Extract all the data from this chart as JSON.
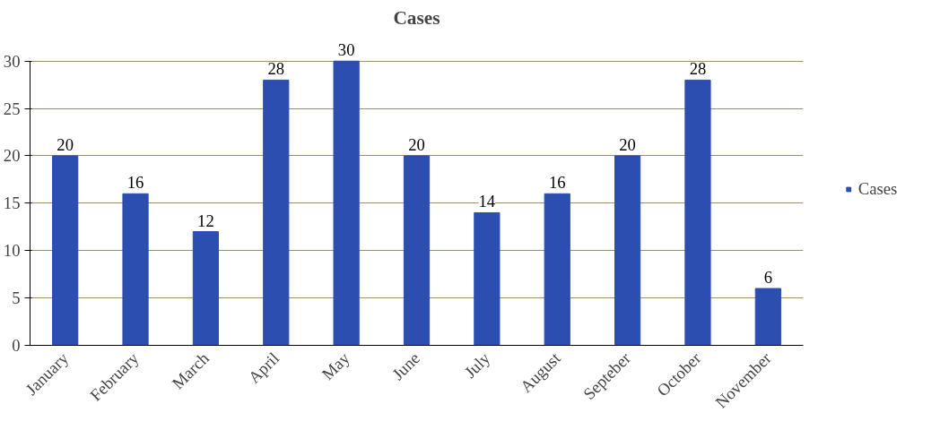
{
  "chart_data": {
    "type": "bar",
    "title": "Cases",
    "categories": [
      "January",
      "February",
      "March",
      "April",
      "May",
      "June",
      "July",
      "August",
      "Septeber",
      "October",
      "November"
    ],
    "series": [
      {
        "name": "Cases",
        "color": "#2b4eb0",
        "values": [
          20,
          16,
          12,
          28,
          30,
          20,
          14,
          16,
          20,
          28,
          6
        ]
      }
    ],
    "ylim": [
      0,
      30
    ],
    "yticks": [
      0,
      5,
      10,
      15,
      20,
      25,
      30
    ],
    "grid": "y",
    "legend": "right",
    "data_labels": true
  }
}
